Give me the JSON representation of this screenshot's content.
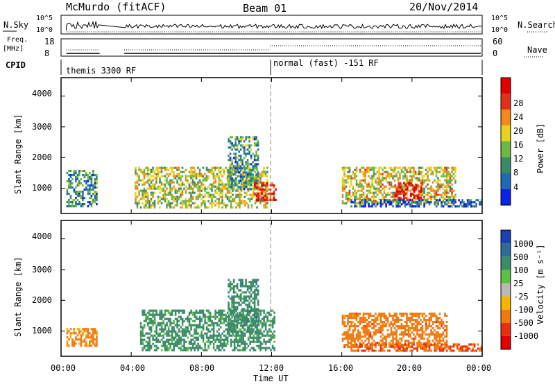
{
  "header": {
    "station": "McMurdo (fitACF)",
    "beam": "Beam 01",
    "date": "20/Nov/2014"
  },
  "topstrip": {
    "left_label": "N.Sky",
    "right_label": "N.Search",
    "left_ticks": [
      "10^5",
      "10^0"
    ],
    "right_ticks": [
      "10^5",
      "10^0"
    ]
  },
  "freq": {
    "label_line1": "Freq.",
    "label_line2": "[MHz]",
    "left_ticks": [
      "18",
      "8"
    ],
    "right_ticks": [
      "60",
      "0"
    ],
    "right_label": "Nave"
  },
  "cpid": {
    "label": "CPID",
    "segments": [
      "themis 3300 RF",
      "normal (fast) -151 RF"
    ]
  },
  "panels": {
    "ylabel": "Slant Range [km]",
    "yticks": [
      "1000",
      "2000",
      "3000",
      "4000"
    ],
    "xticks": [
      "00:00",
      "04:00",
      "08:00",
      "12:00",
      "16:00",
      "20:00",
      "00:00"
    ],
    "xlabel": "Time UT"
  },
  "power_scale": {
    "label": "Power [dB]",
    "ticks": [
      "4",
      "8",
      "12",
      "16",
      "20",
      "24",
      "28"
    ],
    "colors": [
      "#0a22e6",
      "#1f6ab0",
      "#3a8a6a",
      "#6db844",
      "#e8d21c",
      "#f08a1a",
      "#e0321a",
      "#e00000"
    ]
  },
  "velocity_scale": {
    "label": "Velocity [m s⁻¹]",
    "ticks": [
      "1000",
      "500",
      "100",
      "25",
      "-25",
      "-100",
      "-500",
      "-1000"
    ],
    "colors": [
      "#1b3fb5",
      "#2e6a9a",
      "#3b8a68",
      "#5cc040",
      "#b8b8b8",
      "#f5b400",
      "#f07a10",
      "#e83010",
      "#e00000"
    ]
  },
  "chart_data": [
    {
      "type": "heatmap",
      "title": "Beam 01",
      "xlabel": "Time UT",
      "ylabel": "Slant Range [km]",
      "colorbar_label": "Power [dB]",
      "xlim": [
        0,
        24
      ],
      "ylim": [
        180,
        4600
      ],
      "x_ticks": [
        "00:00",
        "04:00",
        "08:00",
        "12:00",
        "16:00",
        "20:00",
        "00:00"
      ],
      "y_ticks": [
        1000,
        2000,
        3000,
        4000
      ],
      "color_range": [
        0,
        32
      ],
      "regions": [
        {
          "t0": 0.3,
          "t1": 2.0,
          "r0": 400,
          "r1": 1600,
          "level": 10
        },
        {
          "t0": 4.2,
          "t1": 11.8,
          "r0": 400,
          "r1": 1700,
          "level": 16
        },
        {
          "t0": 9.5,
          "t1": 11.2,
          "r0": 1000,
          "r1": 2700,
          "level": 10
        },
        {
          "t0": 11.0,
          "t1": 12.2,
          "r0": 600,
          "r1": 1200,
          "level": 26
        },
        {
          "t0": 16.0,
          "t1": 22.5,
          "r0": 500,
          "r1": 1700,
          "level": 18
        },
        {
          "t0": 19.0,
          "t1": 20.5,
          "r0": 600,
          "r1": 1200,
          "level": 28
        },
        {
          "t0": 16.5,
          "t1": 24.0,
          "r0": 400,
          "r1": 650,
          "level": 6
        }
      ]
    },
    {
      "type": "heatmap",
      "title": "Beam 01",
      "xlabel": "Time UT",
      "ylabel": "Slant Range [km]",
      "colorbar_label": "Velocity [m s⁻¹]",
      "xlim": [
        0,
        24
      ],
      "ylim": [
        180,
        4600
      ],
      "x_ticks": [
        "00:00",
        "04:00",
        "08:00",
        "12:00",
        "16:00",
        "20:00",
        "00:00"
      ],
      "y_ticks": [
        1000,
        2000,
        3000,
        4000
      ],
      "color_ticks": [
        1000,
        500,
        100,
        25,
        -25,
        -100,
        -500,
        -1000
      ],
      "regions": [
        {
          "t0": 0.3,
          "t1": 2.0,
          "r0": 500,
          "r1": 1100,
          "velocity": -150
        },
        {
          "t0": 4.5,
          "t1": 12.2,
          "r0": 400,
          "r1": 1700,
          "velocity": 200
        },
        {
          "t0": 9.5,
          "t1": 11.2,
          "r0": 1000,
          "r1": 2700,
          "velocity": 300
        },
        {
          "t0": 16.0,
          "t1": 22.0,
          "r0": 500,
          "r1": 1600,
          "velocity": -300
        },
        {
          "t0": 16.5,
          "t1": 24.0,
          "r0": 350,
          "r1": 600,
          "velocity": -500
        }
      ]
    }
  ]
}
